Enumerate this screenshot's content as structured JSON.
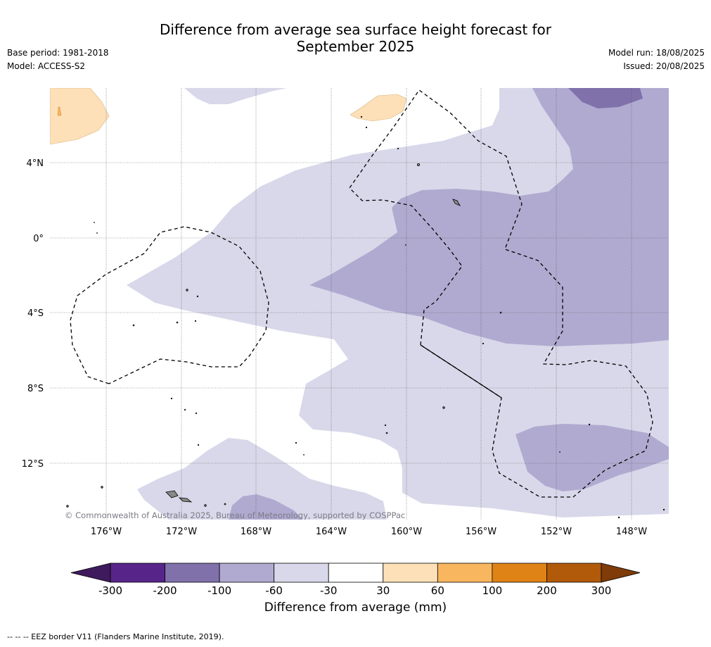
{
  "title_line1": "Difference from average sea surface height forecast for",
  "title_line2": "September 2025",
  "base_period": "Base period: 1981-2018",
  "model": "Model: ACCESS-S2",
  "model_run": "Model run: 18/08/2025",
  "issued": "Issued: 20/08/2025",
  "lat_labels": [
    "4°N",
    "0°",
    "4°S",
    "8°S",
    "12°S"
  ],
  "lon_labels": [
    "176°W",
    "172°W",
    "168°W",
    "164°W",
    "160°W",
    "156°W",
    "152°W",
    "148°W"
  ],
  "copyright": "© Commonwealth of Australia 2025, Bureau of Meteorology, supported by COSPPac",
  "colorbar": {
    "label": "Difference from average (mm)",
    "ticks": [
      "-300",
      "-200",
      "-100",
      "-60",
      "-30",
      "30",
      "60",
      "100",
      "200",
      "300"
    ],
    "colors": [
      "#3f1a5c",
      "#57258a",
      "#8071ab",
      "#b0aad0",
      "#d8d8ea",
      "#ffffff",
      "#fde0b8",
      "#f8b65f",
      "#e08317",
      "#b05a0a",
      "#7f3b08"
    ]
  },
  "footer": "--  --  -- EEZ border V11 (Flanders Marine Institute, 2019)."
}
